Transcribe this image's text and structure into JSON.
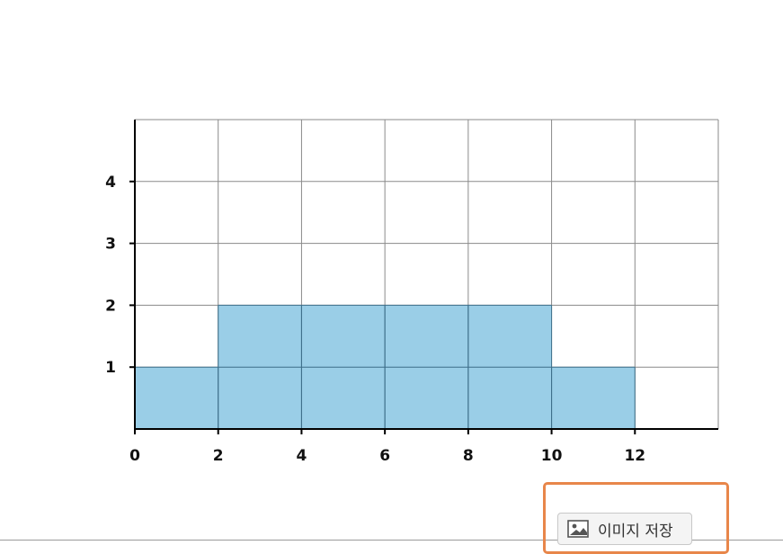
{
  "chart_data": {
    "type": "bar",
    "title": "",
    "xlabel": "",
    "ylabel": "",
    "bins": [
      {
        "x0": 0,
        "x1": 2,
        "value": 1
      },
      {
        "x0": 2,
        "x1": 4,
        "value": 2
      },
      {
        "x0": 4,
        "x1": 6,
        "value": 2
      },
      {
        "x0": 6,
        "x1": 8,
        "value": 2
      },
      {
        "x0": 8,
        "x1": 10,
        "value": 2
      },
      {
        "x0": 10,
        "x1": 12,
        "value": 1
      }
    ],
    "xlim": [
      0,
      14
    ],
    "ylim": [
      0,
      5
    ],
    "xticks": [
      "0",
      "2",
      "4",
      "6",
      "8",
      "10",
      "12"
    ],
    "yticks": [
      "1",
      "2",
      "3",
      "4"
    ],
    "grid": true,
    "bar_color": "#95cbe6"
  },
  "toolbar": {
    "save_image_label": "이미지 저장",
    "accent_color": "#e8864a"
  }
}
